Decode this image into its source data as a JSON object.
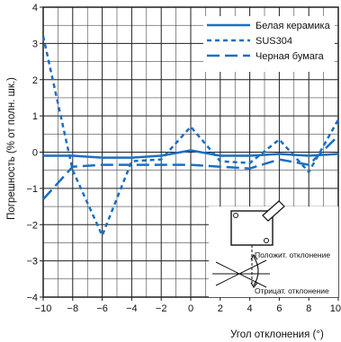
{
  "chart_data": {
    "type": "line",
    "title": "",
    "xlabel": "Угол отклонения (°)",
    "ylabel": "Погрешность (% от полн. шк.)",
    "xlim": [
      -10,
      10
    ],
    "ylim": [
      -4,
      4
    ],
    "x_ticks": [
      -10,
      -8,
      -6,
      -4,
      -2,
      0,
      2,
      4,
      6,
      8,
      10
    ],
    "y_ticks": [
      -4,
      -3,
      -2,
      -1,
      0,
      1,
      2,
      3,
      4
    ],
    "x_tick_labels": [
      "−10",
      "−8",
      "−6",
      "−4",
      "−2",
      "0",
      "2",
      "4",
      "6",
      "8",
      "10"
    ],
    "y_tick_labels": [
      "−4",
      "−3",
      "−2",
      "−1",
      "0",
      "1",
      "2",
      "3",
      "4"
    ],
    "grid": true,
    "grid_minor": true,
    "legend_position": "top-right",
    "series": [
      {
        "name": "Белая керамика",
        "style": "solid",
        "color": "#1a6fc4",
        "points": [
          [
            -10,
            -0.1
          ],
          [
            -8,
            -0.1
          ],
          [
            -6,
            -0.15
          ],
          [
            -4,
            -0.15
          ],
          [
            -2,
            -0.1
          ],
          [
            0,
            0.05
          ],
          [
            2,
            -0.1
          ],
          [
            4,
            -0.1
          ],
          [
            6,
            -0.05
          ],
          [
            8,
            -0.1
          ],
          [
            10,
            -0.05
          ]
        ]
      },
      {
        "name": "SUS304",
        "style": "dotted",
        "color": "#1a6fc4",
        "points": [
          [
            -10,
            3.2
          ],
          [
            -8,
            -0.5
          ],
          [
            -6,
            -2.3
          ],
          [
            -4,
            -0.25
          ],
          [
            -2,
            -0.2
          ],
          [
            0,
            0.7
          ],
          [
            2,
            -0.25
          ],
          [
            4,
            -0.3
          ],
          [
            6,
            0.35
          ],
          [
            8,
            -0.55
          ],
          [
            10,
            0.9
          ]
        ]
      },
      {
        "name": "Черная бумага",
        "style": "dashed",
        "color": "#1a6fc4",
        "points": [
          [
            -10,
            -1.3
          ],
          [
            -8,
            -0.4
          ],
          [
            -6,
            -0.35
          ],
          [
            -4,
            -0.35
          ],
          [
            -2,
            -0.35
          ],
          [
            0,
            -0.35
          ],
          [
            2,
            -0.4
          ],
          [
            4,
            -0.45
          ],
          [
            6,
            -0.2
          ],
          [
            8,
            -0.35
          ],
          [
            10,
            0.45
          ]
        ]
      }
    ],
    "inset": {
      "positive_label": "Положит. отклонение",
      "negative_label": "Отрицат. отклонение"
    }
  },
  "colors": {
    "line": "#1a6fc4",
    "grid": "#1f1f1f",
    "axis_bg": "#ffffff"
  }
}
